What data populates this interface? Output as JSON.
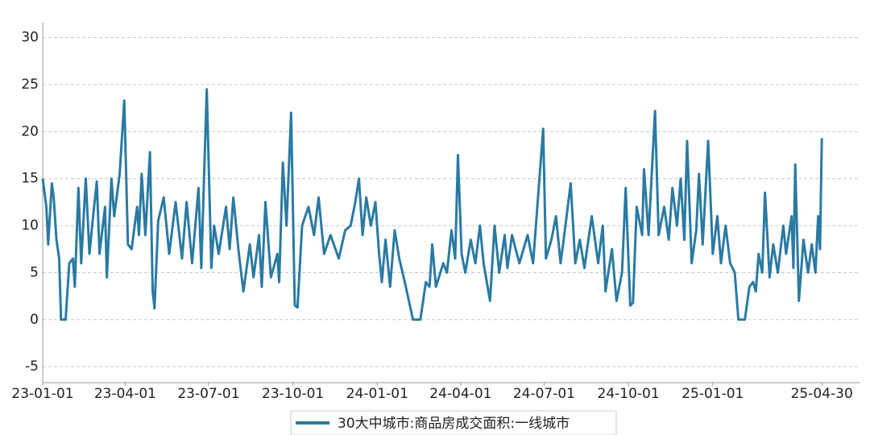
{
  "chart_data": {
    "type": "line",
    "x": [
      "23-01-01",
      "23-01-05",
      "23-01-07",
      "23-01-11",
      "23-01-13",
      "23-01-16",
      "23-01-19",
      "23-01-21",
      "23-01-26",
      "23-01-30",
      "23-02-03",
      "23-02-05",
      "23-02-09",
      "23-02-12",
      "23-02-17",
      "23-02-21",
      "23-02-25",
      "23-03-01",
      "23-03-04",
      "23-03-10",
      "23-03-12",
      "23-03-17",
      "23-03-20",
      "23-03-26",
      "23-03-31",
      "23-04-04",
      "23-04-08",
      "23-04-14",
      "23-04-16",
      "23-04-19",
      "23-04-23",
      "23-04-28",
      "23-05-01",
      "23-05-03",
      "23-05-07",
      "23-05-13",
      "23-05-19",
      "23-05-26",
      "23-06-02",
      "23-06-07",
      "23-06-13",
      "23-06-20",
      "23-06-23",
      "23-06-29",
      "23-07-04",
      "23-07-07",
      "23-07-12",
      "23-07-20",
      "23-07-24",
      "23-07-28",
      "23-08-03",
      "23-08-08",
      "23-08-15",
      "23-08-19",
      "23-08-25",
      "23-08-28",
      "23-09-01",
      "23-09-07",
      "23-09-14",
      "23-09-16",
      "23-09-20",
      "23-09-24",
      "23-09-29",
      "23-10-03",
      "23-10-06",
      "23-10-11",
      "23-10-18",
      "23-10-24",
      "23-10-29",
      "23-11-04",
      "23-11-11",
      "23-11-20",
      "23-11-27",
      "23-12-03",
      "23-12-08",
      "23-12-12",
      "23-12-16",
      "23-12-20",
      "23-12-25",
      "23-12-30",
      "24-01-03",
      "24-01-06",
      "24-01-10",
      "24-01-15",
      "24-01-20",
      "24-01-25",
      "24-01-31",
      "24-02-09",
      "24-02-17",
      "24-02-23",
      "24-02-27",
      "24-03-01",
      "24-03-05",
      "24-03-13",
      "24-03-17",
      "24-03-22",
      "24-03-26",
      "24-03-29",
      "24-04-02",
      "24-04-06",
      "24-04-12",
      "24-04-17",
      "24-04-22",
      "24-04-26",
      "24-05-03",
      "24-05-08",
      "24-05-13",
      "24-05-19",
      "24-05-22",
      "24-05-27",
      "24-06-04",
      "24-06-13",
      "24-06-19",
      "24-06-30",
      "24-07-03",
      "24-07-09",
      "24-07-14",
      "24-07-19",
      "24-07-23",
      "24-07-30",
      "24-08-04",
      "24-08-09",
      "24-08-14",
      "24-08-22",
      "24-08-29",
      "24-09-03",
      "24-09-06",
      "24-09-13",
      "24-09-18",
      "24-09-24",
      "24-09-28",
      "24-10-03",
      "24-10-06",
      "24-10-10",
      "24-10-16",
      "24-10-18",
      "24-10-23",
      "24-10-30",
      "24-11-03",
      "24-11-09",
      "24-11-14",
      "24-11-18",
      "24-11-23",
      "24-11-27",
      "24-12-01",
      "24-12-04",
      "24-12-09",
      "24-12-14",
      "24-12-17",
      "24-12-21",
      "24-12-27",
      "25-01-01",
      "25-01-06",
      "25-01-10",
      "25-01-15",
      "25-01-20",
      "25-01-25",
      "25-01-29",
      "25-02-05",
      "25-02-10",
      "25-02-14",
      "25-02-17",
      "25-02-20",
      "25-02-24",
      "25-02-27",
      "25-03-04",
      "25-03-08",
      "25-03-13",
      "25-03-19",
      "25-03-22",
      "25-03-28",
      "25-03-30",
      "25-04-01",
      "25-04-05",
      "25-04-10",
      "25-04-15",
      "25-04-19",
      "25-04-23",
      "25-04-26",
      "25-04-28",
      "25-04-30"
    ],
    "series": [
      {
        "name": "30大中城市:商品房成交面积:一线城市",
        "color": "#2a7aa3",
        "values": [
          15,
          12,
          8,
          14.5,
          13,
          8.5,
          6.5,
          0,
          0,
          6,
          6.5,
          3.5,
          14,
          6,
          15,
          7,
          11,
          14.7,
          7,
          12,
          4.5,
          15,
          11,
          15.5,
          23.3,
          8,
          7.5,
          12,
          9,
          15.5,
          9,
          17.8,
          3,
          1.2,
          10.5,
          13,
          7,
          12.5,
          6.5,
          12.5,
          6,
          14,
          5.5,
          24.5,
          5.5,
          10,
          7,
          12,
          7.5,
          13,
          7,
          3,
          8,
          4.5,
          9,
          3.5,
          12.5,
          4.5,
          7,
          4,
          16.7,
          10,
          22,
          1.5,
          1.3,
          10,
          12,
          9,
          13,
          7,
          9,
          6.5,
          9.5,
          10,
          12.5,
          15,
          9,
          13,
          10,
          12.5,
          7,
          4,
          8.5,
          3.5,
          9.5,
          6.5,
          4,
          0,
          0,
          4,
          3.5,
          8,
          3.5,
          6,
          5,
          9.5,
          6.5,
          17.5,
          7,
          5,
          8.5,
          6,
          10,
          6,
          2,
          10,
          5,
          9,
          5.5,
          9,
          6,
          9,
          6,
          20.3,
          6.5,
          8.5,
          11,
          6,
          9,
          14.5,
          6,
          8.5,
          5.5,
          11,
          6,
          10,
          3,
          7.5,
          2,
          5,
          14,
          1.5,
          1.8,
          12,
          9,
          16,
          9,
          22.2,
          9,
          12,
          8.5,
          14,
          10,
          15,
          8.5,
          19,
          6,
          9.5,
          15.5,
          8,
          19,
          7,
          11,
          6,
          10,
          6,
          5,
          0,
          0,
          3.5,
          4,
          3,
          7,
          5,
          13.5,
          4.5,
          8,
          5,
          10,
          7,
          11,
          5.5,
          16.5,
          2,
          8.5,
          5,
          8,
          5,
          11,
          7.5,
          19.3
        ]
      }
    ],
    "xlim": [
      "23-01-01",
      "25-06-11"
    ],
    "xticks": [
      "23-01-01",
      "23-04-01",
      "23-07-01",
      "23-10-01",
      "24-01-01",
      "24-04-01",
      "24-07-01",
      "24-10-01",
      "25-01-01",
      "25-04-30"
    ],
    "ylim": [
      -6.7,
      31.6
    ],
    "yticks": [
      -5,
      0,
      5,
      10,
      15,
      20,
      25,
      30
    ],
    "grid": true
  }
}
